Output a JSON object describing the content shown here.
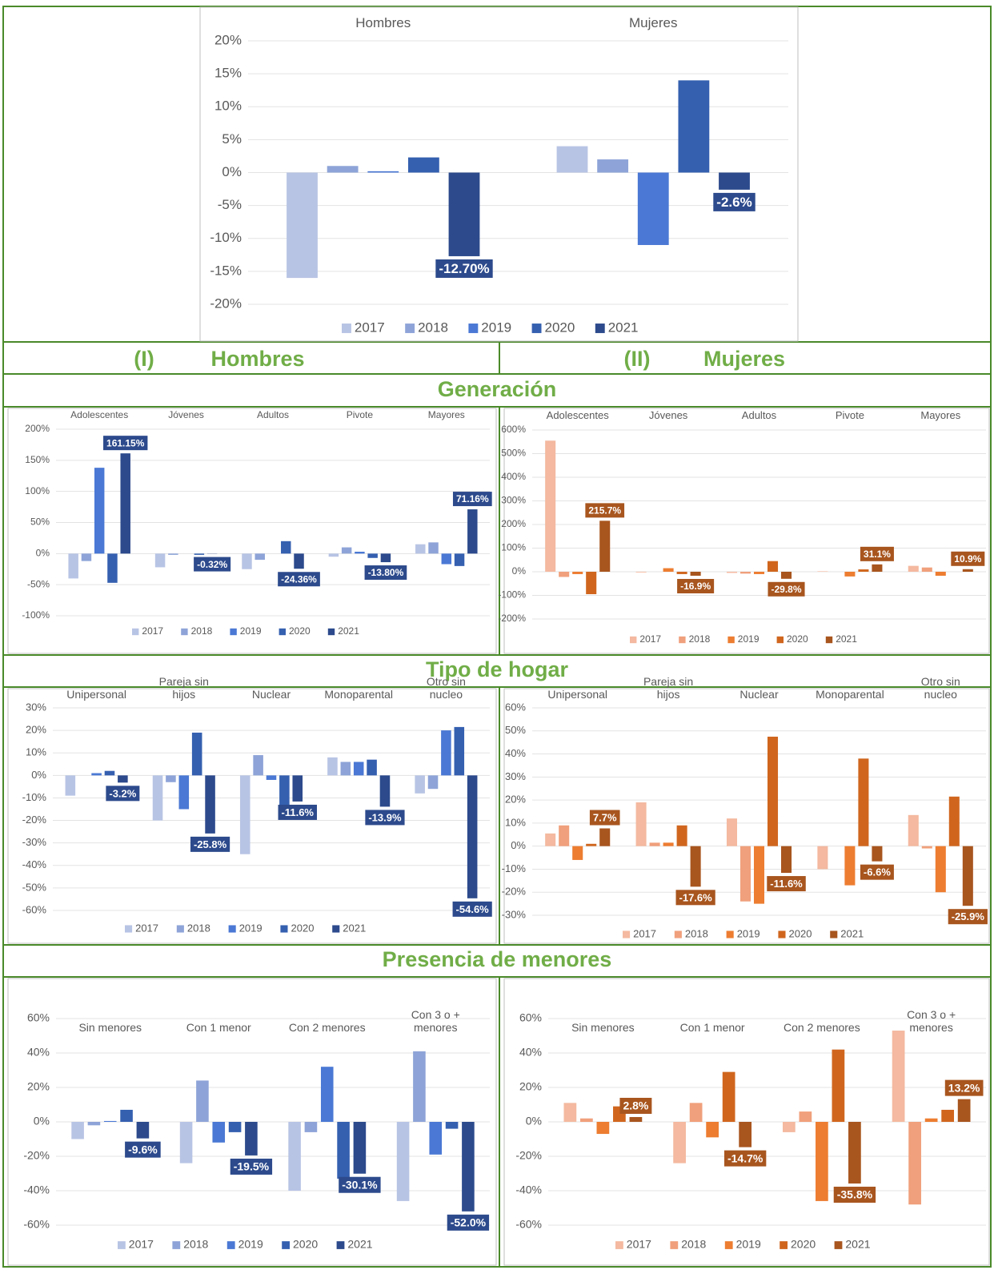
{
  "headers": [
    {
      "number": "(I)",
      "label": "Hombres"
    },
    {
      "number": "(II)",
      "label": "Mujeres"
    }
  ],
  "sections": [
    "Generación",
    "Tipo de hogar",
    "Presencia de menores"
  ],
  "chart_data": [
    {
      "type": "bar",
      "categories": [
        "Hombres",
        "Mujeres"
      ],
      "series": [
        {
          "name": "2017",
          "color": "#b8c4e4",
          "values": [
            -16,
            4
          ]
        },
        {
          "name": "2018",
          "color": "#8ea4d8",
          "values": [
            1,
            2
          ]
        },
        {
          "name": "2019",
          "color": "#4a78d4",
          "values": [
            0.2,
            -11
          ]
        },
        {
          "name": "2020",
          "color": "#3560b0",
          "values": [
            2.3,
            14
          ]
        },
        {
          "name": "2021",
          "color": "#2c4a8c",
          "values": [
            -12.7,
            -2.6
          ],
          "value_labels": [
            "-12.70%",
            "-2.6%"
          ]
        }
      ],
      "ylim": [
        -20,
        20
      ],
      "yticks": [
        {
          "value": -20,
          "label": "-20%"
        },
        {
          "value": -15,
          "label": "-15%"
        },
        {
          "value": -10,
          "label": "-10%"
        },
        {
          "value": -5,
          "label": "-5%"
        },
        {
          "value": 0,
          "label": "0%"
        },
        {
          "value": 5,
          "label": "5%"
        },
        {
          "value": 10,
          "label": "10%"
        },
        {
          "value": 15,
          "label": "15%"
        },
        {
          "value": 20,
          "label": "20%"
        }
      ],
      "grid": true,
      "legend": "bottom"
    },
    {
      "type": "bar",
      "categories": [
        "Adolescentes",
        "Jóvenes",
        "Adultos",
        "Pivote",
        "Mayores"
      ],
      "series": [
        {
          "name": "2017",
          "color": "#b8c4e4",
          "values": [
            -40,
            -22,
            -25,
            -5,
            15
          ]
        },
        {
          "name": "2018",
          "color": "#8ea4d8",
          "values": [
            -12,
            -2,
            -10,
            10,
            18
          ]
        },
        {
          "name": "2019",
          "color": "#4a78d4",
          "values": [
            138,
            0,
            0,
            3,
            -17
          ]
        },
        {
          "name": "2020",
          "color": "#3560b0",
          "values": [
            -47,
            -2,
            20,
            -7,
            -20
          ]
        },
        {
          "name": "2021",
          "color": "#2c4a8c",
          "values": [
            161.15,
            -0.32,
            -24.36,
            -13.8,
            71.16
          ],
          "value_labels": [
            "161.15%",
            "-0.32%",
            "-24.36%",
            "-13.80%",
            "71.16%"
          ]
        }
      ],
      "ylim": [
        -100,
        200
      ],
      "yticks": [
        {
          "value": -100,
          "label": "-100%"
        },
        {
          "value": -50,
          "label": "-50%"
        },
        {
          "value": 0,
          "label": "0%"
        },
        {
          "value": 50,
          "label": "50%"
        },
        {
          "value": 100,
          "label": "100%"
        },
        {
          "value": 150,
          "label": "150%"
        },
        {
          "value": 200,
          "label": "200%"
        }
      ],
      "grid": true,
      "legend": "bottom"
    },
    {
      "type": "bar",
      "categories": [
        "Adolescentes",
        "Jóvenes",
        "Adultos",
        "Pivote",
        "Mayores"
      ],
      "series": [
        {
          "name": "2017",
          "color": "#f4b9a0",
          "values": [
            555,
            -3,
            -5,
            2,
            25
          ]
        },
        {
          "name": "2018",
          "color": "#f0a07c",
          "values": [
            -22,
            0,
            -8,
            0,
            18
          ]
        },
        {
          "name": "2019",
          "color": "#ed7d31",
          "values": [
            -10,
            15,
            -10,
            -20,
            -17
          ]
        },
        {
          "name": "2020",
          "color": "#d0661e",
          "values": [
            -95,
            -10,
            45,
            10,
            0
          ]
        },
        {
          "name": "2021",
          "color": "#a8551e",
          "values": [
            215.7,
            -16.9,
            -29.8,
            31.1,
            10.9
          ],
          "value_labels": [
            "215.7%",
            "-16.9%",
            "-29.8%",
            "31.1%",
            "10.9%"
          ]
        }
      ],
      "ylim": [
        -200,
        600
      ],
      "yticks": [
        {
          "value": -200,
          "label": "-200%"
        },
        {
          "value": -100,
          "label": "-100%"
        },
        {
          "value": 0,
          "label": "0%"
        },
        {
          "value": 100,
          "label": "100%"
        },
        {
          "value": 200,
          "label": "200%"
        },
        {
          "value": 300,
          "label": "300%"
        },
        {
          "value": 400,
          "label": "400%"
        },
        {
          "value": 500,
          "label": "500%"
        },
        {
          "value": 600,
          "label": "600%"
        }
      ],
      "grid": true,
      "legend": "bottom"
    },
    {
      "type": "bar",
      "categories": [
        "Unipersonal",
        "Pareja sin hijos",
        "Nuclear",
        "Monoparental",
        "Otro sin nucleo"
      ],
      "series": [
        {
          "name": "2017",
          "color": "#b8c4e4",
          "values": [
            -9,
            -20,
            -35,
            8,
            -8
          ]
        },
        {
          "name": "2018",
          "color": "#8ea4d8",
          "values": [
            0,
            -3,
            9,
            6,
            -6
          ]
        },
        {
          "name": "2019",
          "color": "#4a78d4",
          "values": [
            1,
            -15,
            -2,
            6,
            20
          ]
        },
        {
          "name": "2020",
          "color": "#3560b0",
          "values": [
            2,
            19,
            -17,
            7,
            21.5
          ]
        },
        {
          "name": "2021",
          "color": "#2c4a8c",
          "values": [
            -3.2,
            -25.8,
            -11.6,
            -13.9,
            -54.6
          ],
          "value_labels": [
            "-3.2%",
            "-25.8%",
            "-11.6%",
            "-13.9%",
            "-54.6%"
          ]
        }
      ],
      "ylim": [
        -60,
        30
      ],
      "yticks": [
        {
          "value": -60,
          "label": "-60%"
        },
        {
          "value": -50,
          "label": "-50%"
        },
        {
          "value": -40,
          "label": "-40%"
        },
        {
          "value": -30,
          "label": "-30%"
        },
        {
          "value": -20,
          "label": "-20%"
        },
        {
          "value": -10,
          "label": "-10%"
        },
        {
          "value": 0,
          "label": "0%"
        },
        {
          "value": 10,
          "label": "10%"
        },
        {
          "value": 20,
          "label": "20%"
        },
        {
          "value": 30,
          "label": "30%"
        }
      ],
      "grid": true,
      "legend": "bottom"
    },
    {
      "type": "bar",
      "categories": [
        "Unipersonal",
        "Pareja sin hijos",
        "Nuclear",
        "Monoparental",
        "Otro sin nucleo"
      ],
      "series": [
        {
          "name": "2017",
          "color": "#f4b9a0",
          "values": [
            5.5,
            19,
            12,
            -10,
            13.5
          ]
        },
        {
          "name": "2018",
          "color": "#f0a07c",
          "values": [
            9,
            1.5,
            -24,
            0,
            -1
          ]
        },
        {
          "name": "2019",
          "color": "#ed7d31",
          "values": [
            -6,
            1.5,
            -25,
            -17,
            -20
          ]
        },
        {
          "name": "2020",
          "color": "#d0661e",
          "values": [
            1,
            9,
            47.5,
            38,
            21.5
          ]
        },
        {
          "name": "2021",
          "color": "#a8551e",
          "values": [
            7.7,
            -17.6,
            -11.6,
            -6.6,
            -25.9
          ],
          "value_labels": [
            "7.7%",
            "-17.6%",
            "-11.6%",
            "-6.6%",
            "-25.9%"
          ]
        }
      ],
      "ylim": [
        -30,
        60
      ],
      "yticks": [
        {
          "value": -30,
          "label": "-30%"
        },
        {
          "value": -20,
          "label": "-20%"
        },
        {
          "value": -10,
          "label": "-10%"
        },
        {
          "value": 0,
          "label": "0%"
        },
        {
          "value": 10,
          "label": "10%"
        },
        {
          "value": 20,
          "label": "20%"
        },
        {
          "value": 30,
          "label": "30%"
        },
        {
          "value": 40,
          "label": "40%"
        },
        {
          "value": 50,
          "label": "50%"
        },
        {
          "value": 60,
          "label": "60%"
        }
      ],
      "grid": true,
      "legend": "bottom"
    },
    {
      "type": "bar",
      "categories": [
        "Sin menores",
        "Con 1 menor",
        "Con 2 menores",
        "Con 3 o + menores"
      ],
      "series": [
        {
          "name": "2017",
          "color": "#b8c4e4",
          "values": [
            -10,
            -24,
            -40,
            -46
          ]
        },
        {
          "name": "2018",
          "color": "#8ea4d8",
          "values": [
            -2,
            24,
            -6,
            41
          ]
        },
        {
          "name": "2019",
          "color": "#4a78d4",
          "values": [
            0.5,
            -12,
            32,
            -19
          ]
        },
        {
          "name": "2020",
          "color": "#3560b0",
          "values": [
            7,
            -6,
            -33,
            -4
          ]
        },
        {
          "name": "2021",
          "color": "#2c4a8c",
          "values": [
            -9.6,
            -19.5,
            -30.1,
            -52.0
          ],
          "value_labels": [
            "-9.6%",
            "-19.5%",
            "-30.1%",
            "-52.0%"
          ]
        }
      ],
      "ylim": [
        -60,
        60
      ],
      "yticks": [
        {
          "value": -60,
          "label": "-60%"
        },
        {
          "value": -40,
          "label": "-40%"
        },
        {
          "value": -20,
          "label": "-20%"
        },
        {
          "value": 0,
          "label": "0%"
        },
        {
          "value": 20,
          "label": "20%"
        },
        {
          "value": 40,
          "label": "40%"
        },
        {
          "value": 60,
          "label": "60%"
        }
      ],
      "grid": true,
      "legend": "bottom"
    },
    {
      "type": "bar",
      "categories": [
        "Sin menores",
        "Con 1 menor",
        "Con 2 menores",
        "Con 3 o + menores"
      ],
      "series": [
        {
          "name": "2017",
          "color": "#f4b9a0",
          "values": [
            11,
            -24,
            -6,
            53
          ]
        },
        {
          "name": "2018",
          "color": "#f0a07c",
          "values": [
            2,
            11,
            6,
            -48
          ]
        },
        {
          "name": "2019",
          "color": "#ed7d31",
          "values": [
            -7,
            -9,
            -46,
            2
          ]
        },
        {
          "name": "2020",
          "color": "#d0661e",
          "values": [
            9,
            29,
            42,
            7
          ]
        },
        {
          "name": "2021",
          "color": "#a8551e",
          "values": [
            2.8,
            -14.7,
            -35.8,
            13.2
          ],
          "value_labels": [
            "2.8%",
            "-14.7%",
            "-35.8%",
            "13.2%"
          ]
        }
      ],
      "ylim": [
        -60,
        60
      ],
      "yticks": [
        {
          "value": -60,
          "label": "-60%"
        },
        {
          "value": -40,
          "label": "-40%"
        },
        {
          "value": -20,
          "label": "-20%"
        },
        {
          "value": 0,
          "label": "0%"
        },
        {
          "value": 20,
          "label": "20%"
        },
        {
          "value": 40,
          "label": "40%"
        },
        {
          "value": 60,
          "label": "60%"
        }
      ],
      "grid": true,
      "legend": "bottom"
    }
  ]
}
